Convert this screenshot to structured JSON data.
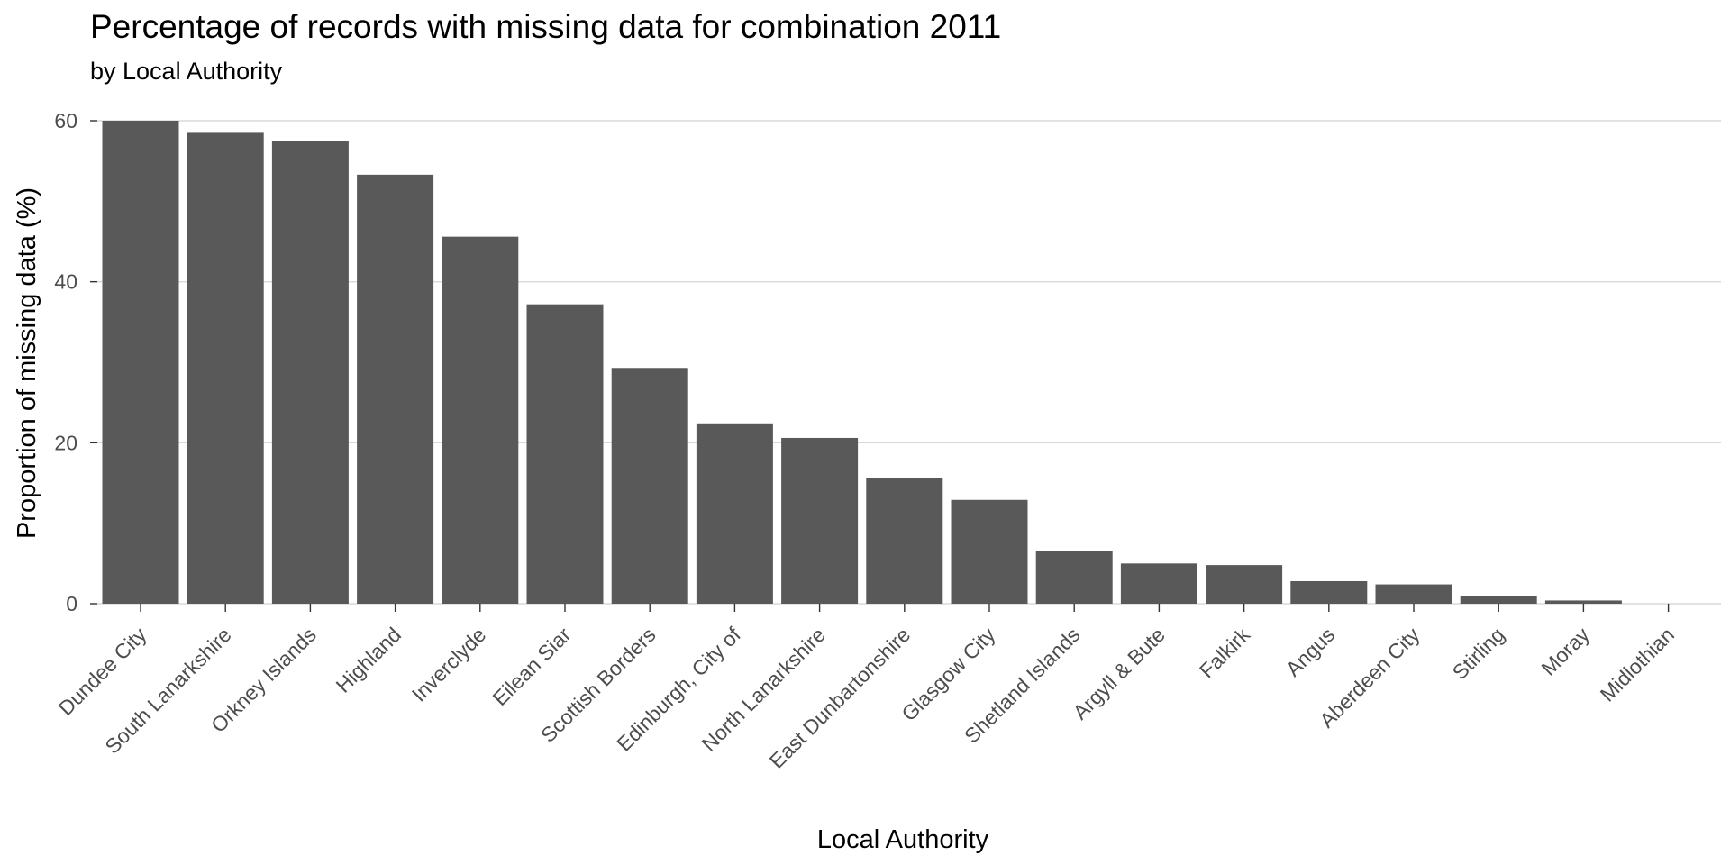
{
  "chart_data": {
    "type": "bar",
    "title": "Percentage of records with missing data for combination 2011",
    "subtitle": "by Local Authority",
    "xlabel": "Local Authority",
    "ylabel": "Proportion of missing data (%)",
    "ylim": [
      0,
      60
    ],
    "yticks": [
      0,
      20,
      40,
      60
    ],
    "bar_color": "#595959",
    "grid": true,
    "legend": "none",
    "categories": [
      "Dundee City",
      "South Lanarkshire",
      "Orkney Islands",
      "Highland",
      "Inverclyde",
      "Eilean Siar",
      "Scottish Borders",
      "Edinburgh, City of",
      "North Lanarkshire",
      "East Dunbartonshire",
      "Glasgow City",
      "Shetland Islands",
      "Argyll & Bute",
      "Falkirk",
      "Angus",
      "Aberdeen City",
      "Stirling",
      "Moray",
      "Midlothian"
    ],
    "values": [
      60.0,
      58.5,
      57.5,
      53.3,
      45.6,
      37.2,
      29.3,
      22.3,
      20.6,
      15.6,
      12.9,
      6.6,
      5.0,
      4.8,
      2.8,
      2.4,
      1.0,
      0.4,
      0.0
    ]
  }
}
